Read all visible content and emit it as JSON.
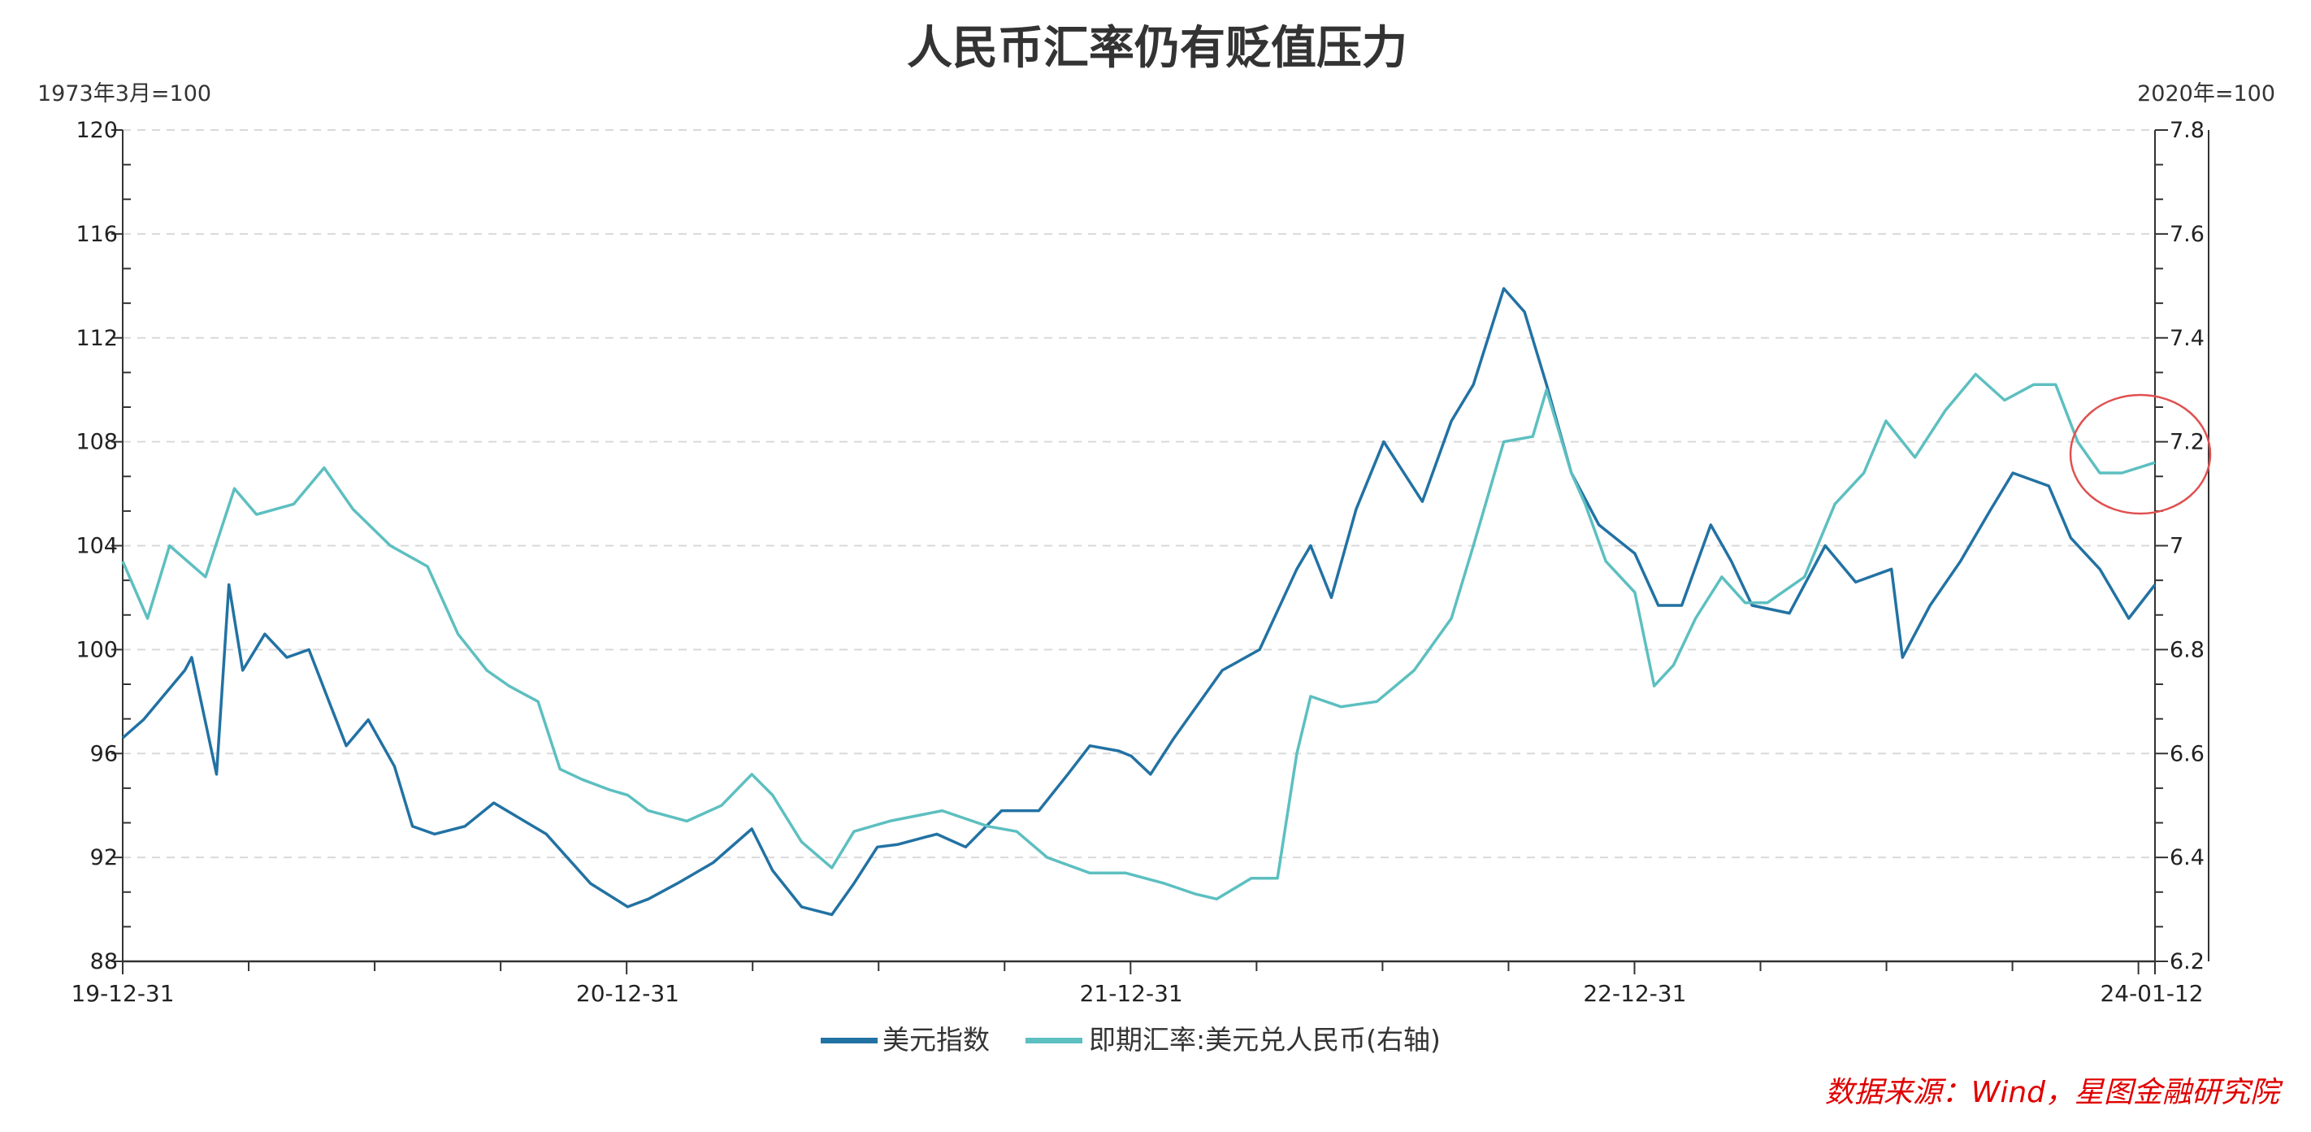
{
  "chart_data": {
    "type": "line",
    "title": "人民币汇率仍有贬值压力",
    "left_axis_unit": "1973年3月=100",
    "right_axis_unit": "2020年=100",
    "ylim_left": [
      88,
      120
    ],
    "yticks_left": [
      88,
      92,
      96,
      100,
      104,
      108,
      112,
      116,
      120
    ],
    "ylim_right": [
      6.2,
      7.8
    ],
    "yticks_right": [
      "6.2",
      "6.4",
      "6.6",
      "6.8",
      "7",
      "7.2",
      "7.4",
      "7.6",
      "7.8"
    ],
    "xlim": [
      "2019-12-31",
      "2024-01-12"
    ],
    "xticks": [
      {
        "date": "2019-12-31",
        "label": "19-12-31"
      },
      {
        "date": "2020-12-31",
        "label": "20-12-31"
      },
      {
        "date": "2021-12-31",
        "label": "21-12-31"
      },
      {
        "date": "2022-12-31",
        "label": "22-12-31"
      },
      {
        "date": "2024-01-12",
        "label": "24-01-12"
      }
    ],
    "grid": "horizontal dashed",
    "legend_placement": "bottom",
    "series": [
      {
        "name": "美元指数",
        "axis": "left",
        "color": "#2272a3",
        "x": [
          "2019-12-31",
          "2020-01-15",
          "2020-02-14",
          "2020-02-19",
          "2020-03-08",
          "2020-03-17",
          "2020-03-27",
          "2020-04-12",
          "2020-04-28",
          "2020-05-14",
          "2020-05-30",
          "2020-06-10",
          "2020-06-26",
          "2020-07-15",
          "2020-07-28",
          "2020-08-13",
          "2020-09-04",
          "2020-09-25",
          "2020-11-02",
          "2020-12-04",
          "2020-12-31",
          "2021-01-15",
          "2021-02-05",
          "2021-03-03",
          "2021-03-31",
          "2021-04-15",
          "2021-05-06",
          "2021-05-28",
          "2021-06-13",
          "2021-06-30",
          "2021-07-15",
          "2021-08-12",
          "2021-09-02",
          "2021-09-28",
          "2021-10-25",
          "2021-11-15",
          "2021-12-01",
          "2021-12-22",
          "2021-12-31",
          "2022-01-14",
          "2022-01-31",
          "2022-03-07",
          "2022-04-03",
          "2022-04-30",
          "2022-05-10",
          "2022-05-25",
          "2022-06-12",
          "2022-07-02",
          "2022-07-30",
          "2022-08-20",
          "2022-09-05",
          "2022-09-27",
          "2022-10-12",
          "2022-10-28",
          "2022-11-15",
          "2022-12-05",
          "2022-12-31",
          "2023-01-17",
          "2023-02-03",
          "2023-02-24",
          "2023-03-11",
          "2023-03-26",
          "2023-04-22",
          "2023-05-18",
          "2023-06-09",
          "2023-07-05",
          "2023-07-13",
          "2023-08-02",
          "2023-08-24",
          "2023-09-15",
          "2023-10-01",
          "2023-10-27",
          "2023-11-12",
          "2023-12-03",
          "2023-12-24",
          "2024-01-12"
        ],
        "values": [
          96.6,
          97.3,
          99.2,
          99.7,
          95.2,
          102.5,
          99.2,
          100.6,
          99.7,
          100.0,
          97.8,
          96.3,
          97.3,
          95.5,
          93.2,
          92.9,
          93.2,
          94.1,
          92.9,
          91.0,
          90.1,
          90.4,
          91.0,
          91.8,
          93.1,
          91.5,
          90.1,
          89.8,
          91.0,
          92.4,
          92.5,
          92.9,
          92.4,
          93.8,
          93.8,
          95.2,
          96.3,
          96.1,
          95.9,
          95.2,
          96.6,
          99.2,
          100.0,
          103.1,
          104.0,
          102.0,
          105.4,
          108.0,
          105.7,
          108.8,
          110.2,
          113.9,
          113.0,
          110.2,
          106.8,
          104.8,
          103.7,
          101.7,
          101.7,
          104.8,
          103.4,
          101.7,
          101.4,
          104.0,
          102.6,
          103.1,
          99.7,
          101.7,
          103.4,
          105.4,
          106.8,
          106.3,
          104.3,
          103.1,
          101.2,
          102.5
        ]
      },
      {
        "name": "即期汇率:美元兑人民币(右轴)",
        "axis": "right",
        "color": "#5dbfc0",
        "x": [
          "2019-12-31",
          "2020-01-18",
          "2020-02-03",
          "2020-02-29",
          "2020-03-21",
          "2020-04-06",
          "2020-05-03",
          "2020-05-25",
          "2020-06-15",
          "2020-07-12",
          "2020-08-08",
          "2020-08-30",
          "2020-09-20",
          "2020-10-06",
          "2020-10-27",
          "2020-11-12",
          "2020-11-28",
          "2020-12-18",
          "2020-12-31",
          "2021-01-15",
          "2021-02-12",
          "2021-03-09",
          "2021-03-31",
          "2021-04-15",
          "2021-05-06",
          "2021-05-28",
          "2021-06-13",
          "2021-07-09",
          "2021-08-16",
          "2021-09-18",
          "2021-10-09",
          "2021-10-31",
          "2021-12-01",
          "2021-12-27",
          "2022-01-24",
          "2022-02-15",
          "2022-03-03",
          "2022-03-28",
          "2022-04-16",
          "2022-04-30",
          "2022-05-10",
          "2022-06-01",
          "2022-06-27",
          "2022-07-24",
          "2022-08-20",
          "2022-09-05",
          "2022-09-27",
          "2022-10-18",
          "2022-10-28",
          "2022-11-15",
          "2022-11-25",
          "2022-12-10",
          "2022-12-31",
          "2023-01-14",
          "2023-01-28",
          "2023-02-13",
          "2023-03-04",
          "2023-03-21",
          "2023-04-06",
          "2023-05-03",
          "2023-05-25",
          "2023-06-15",
          "2023-07-01",
          "2023-07-22",
          "2023-08-13",
          "2023-09-04",
          "2023-09-25",
          "2023-10-16",
          "2023-11-01",
          "2023-11-17",
          "2023-12-03",
          "2023-12-19",
          "2024-01-12"
        ],
        "values": [
          6.97,
          6.86,
          7.0,
          6.94,
          7.11,
          7.06,
          7.08,
          7.15,
          7.07,
          7.0,
          6.96,
          6.83,
          6.76,
          6.73,
          6.7,
          6.57,
          6.55,
          6.53,
          6.52,
          6.49,
          6.47,
          6.5,
          6.56,
          6.52,
          6.43,
          6.38,
          6.45,
          6.47,
          6.49,
          6.46,
          6.45,
          6.4,
          6.37,
          6.37,
          6.35,
          6.33,
          6.32,
          6.36,
          6.36,
          6.6,
          6.71,
          6.69,
          6.7,
          6.76,
          6.86,
          7.0,
          7.2,
          7.21,
          7.3,
          7.14,
          7.08,
          6.97,
          6.91,
          6.73,
          6.77,
          6.86,
          6.94,
          6.89,
          6.89,
          6.94,
          7.08,
          7.14,
          7.24,
          7.17,
          7.26,
          7.33,
          7.28,
          7.31,
          7.31,
          7.2,
          7.14,
          7.14,
          7.16
        ]
      }
    ]
  },
  "source": "数据来源：Wind，星图金融研究院",
  "colors": {
    "axis": "#333333",
    "grid": "#d9d9d9",
    "source": "#e00000",
    "annotation": "#e05050"
  }
}
